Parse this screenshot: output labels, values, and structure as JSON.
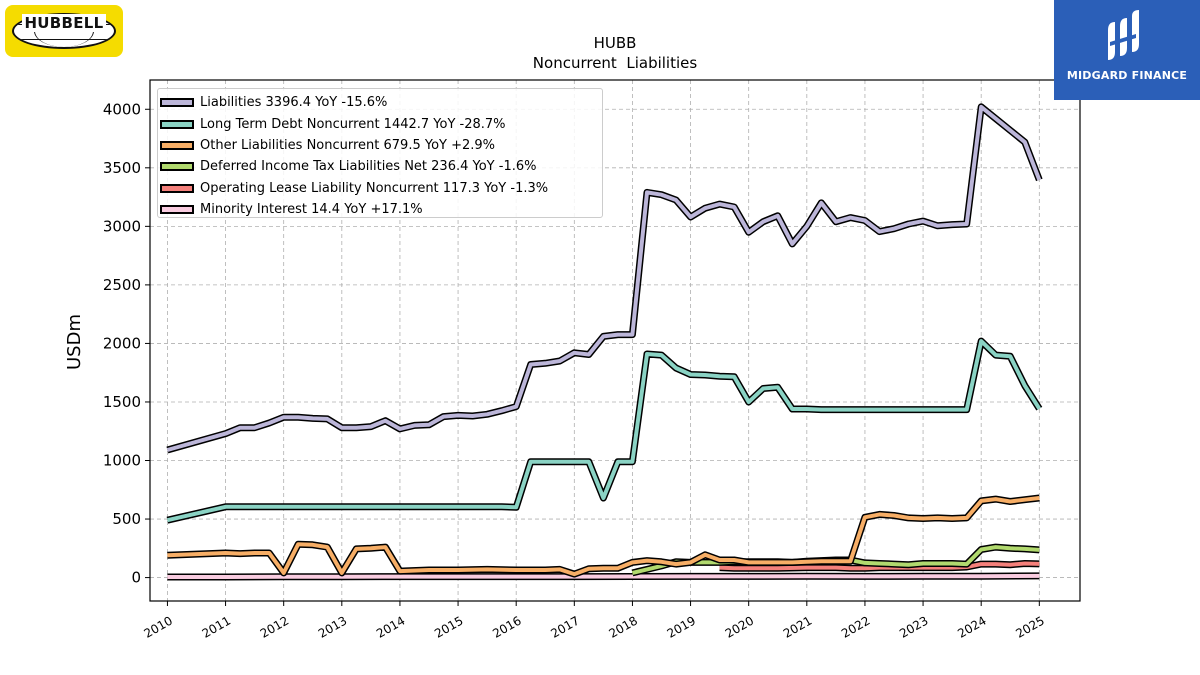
{
  "logos": {
    "left_text": "HUBBELL",
    "right_text": "MIDGARD FINANCE"
  },
  "chart_data": {
    "type": "line",
    "title": "HUBB",
    "subtitle": "Noncurrent  Liabilities",
    "xlabel": "",
    "ylabel": "USDm",
    "xlim": [
      2009.7,
      2025.7
    ],
    "ylim": [
      -200,
      4250
    ],
    "xticks": [
      2010,
      2011,
      2012,
      2013,
      2014,
      2015,
      2016,
      2017,
      2018,
      2019,
      2020,
      2021,
      2022,
      2023,
      2024,
      2025
    ],
    "xtick_labels": [
      "2010",
      "2011",
      "2012",
      "2013",
      "2014",
      "2015",
      "2016",
      "2017",
      "2018",
      "2019",
      "2020",
      "2021",
      "2022",
      "2023",
      "2024",
      "2025"
    ],
    "yticks": [
      0,
      500,
      1000,
      1500,
      2000,
      2500,
      3000,
      3500,
      4000
    ],
    "ytick_labels": [
      "0",
      "500",
      "1000",
      "1500",
      "2000",
      "2500",
      "3000",
      "3500",
      "4000"
    ],
    "grid": true,
    "legend_position": "top-left",
    "series": [
      {
        "name": "Liabilities",
        "legend_label": "Liabilities  3396.4 YoY -15.6%",
        "color": "#bcb6d9",
        "points": [
          [
            2010.0,
            1090
          ],
          [
            2011.0,
            1230
          ],
          [
            2011.25,
            1280
          ],
          [
            2011.5,
            1280
          ],
          [
            2011.75,
            1320
          ],
          [
            2012.0,
            1370
          ],
          [
            2012.25,
            1370
          ],
          [
            2012.5,
            1360
          ],
          [
            2012.75,
            1355
          ],
          [
            2013.0,
            1280
          ],
          [
            2013.25,
            1280
          ],
          [
            2013.5,
            1290
          ],
          [
            2013.75,
            1340
          ],
          [
            2014.0,
            1270
          ],
          [
            2014.25,
            1300
          ],
          [
            2014.5,
            1305
          ],
          [
            2014.75,
            1375
          ],
          [
            2015.0,
            1385
          ],
          [
            2015.25,
            1380
          ],
          [
            2015.5,
            1395
          ],
          [
            2015.75,
            1425
          ],
          [
            2016.0,
            1460
          ],
          [
            2016.25,
            1820
          ],
          [
            2016.5,
            1830
          ],
          [
            2016.75,
            1850
          ],
          [
            2017.0,
            1920
          ],
          [
            2017.25,
            1905
          ],
          [
            2017.5,
            2060
          ],
          [
            2017.75,
            2075
          ],
          [
            2018.0,
            2075
          ],
          [
            2018.25,
            3290
          ],
          [
            2018.5,
            3270
          ],
          [
            2018.75,
            3225
          ],
          [
            2019.0,
            3080
          ],
          [
            2019.25,
            3155
          ],
          [
            2019.5,
            3190
          ],
          [
            2019.75,
            3165
          ],
          [
            2020.0,
            2950
          ],
          [
            2020.25,
            3040
          ],
          [
            2020.5,
            3090
          ],
          [
            2020.75,
            2850
          ],
          [
            2021.0,
            3000
          ],
          [
            2021.25,
            3200
          ],
          [
            2021.5,
            3040
          ],
          [
            2021.75,
            3075
          ],
          [
            2022.0,
            3050
          ],
          [
            2022.25,
            2955
          ],
          [
            2022.5,
            2980
          ],
          [
            2022.75,
            3020
          ],
          [
            2023.0,
            3045
          ],
          [
            2023.25,
            3005
          ],
          [
            2023.5,
            3015
          ],
          [
            2023.75,
            3020
          ],
          [
            2024.0,
            4020
          ],
          [
            2024.25,
            3920
          ],
          [
            2024.5,
            3820
          ],
          [
            2024.75,
            3720
          ],
          [
            2025.0,
            3396.4
          ]
        ]
      },
      {
        "name": "Long Term Debt Noncurrent",
        "legend_label": "Long Term Debt Noncurrent  1442.7 YoY -28.7%",
        "color": "#8ad3c4",
        "points": [
          [
            2010.0,
            490
          ],
          [
            2011.0,
            605
          ],
          [
            2011.5,
            605
          ],
          [
            2012.0,
            605
          ],
          [
            2013.0,
            605
          ],
          [
            2014.0,
            605
          ],
          [
            2015.0,
            605
          ],
          [
            2015.5,
            605
          ],
          [
            2015.75,
            605
          ],
          [
            2016.0,
            600
          ],
          [
            2016.25,
            990
          ],
          [
            2016.5,
            990
          ],
          [
            2016.75,
            990
          ],
          [
            2017.0,
            990
          ],
          [
            2017.25,
            990
          ],
          [
            2017.5,
            680
          ],
          [
            2017.75,
            990
          ],
          [
            2018.0,
            990
          ],
          [
            2018.25,
            1910
          ],
          [
            2018.5,
            1900
          ],
          [
            2018.75,
            1790
          ],
          [
            2019.0,
            1735
          ],
          [
            2019.25,
            1730
          ],
          [
            2019.5,
            1720
          ],
          [
            2019.75,
            1715
          ],
          [
            2020.0,
            1500
          ],
          [
            2020.25,
            1615
          ],
          [
            2020.5,
            1625
          ],
          [
            2020.75,
            1440
          ],
          [
            2021.0,
            1440
          ],
          [
            2021.25,
            1435
          ],
          [
            2021.5,
            1435
          ],
          [
            2022.0,
            1435
          ],
          [
            2022.5,
            1435
          ],
          [
            2023.0,
            1435
          ],
          [
            2023.5,
            1435
          ],
          [
            2023.75,
            1435
          ],
          [
            2024.0,
            2020
          ],
          [
            2024.25,
            1900
          ],
          [
            2024.5,
            1890
          ],
          [
            2024.75,
            1640
          ],
          [
            2025.0,
            1442.7
          ]
        ]
      },
      {
        "name": "Other Liabilities Noncurrent",
        "legend_label": "Other Liabilities Noncurrent  679.5 YoY +2.9%",
        "color": "#f7ae66",
        "points": [
          [
            2010.0,
            190
          ],
          [
            2011.0,
            210
          ],
          [
            2011.25,
            205
          ],
          [
            2011.5,
            210
          ],
          [
            2011.75,
            210
          ],
          [
            2012.0,
            40
          ],
          [
            2012.25,
            285
          ],
          [
            2012.5,
            280
          ],
          [
            2012.75,
            260
          ],
          [
            2013.0,
            40
          ],
          [
            2013.25,
            245
          ],
          [
            2013.5,
            250
          ],
          [
            2013.75,
            260
          ],
          [
            2014.0,
            55
          ],
          [
            2014.5,
            65
          ],
          [
            2015.0,
            65
          ],
          [
            2015.5,
            70
          ],
          [
            2016.0,
            65
          ],
          [
            2016.5,
            65
          ],
          [
            2016.75,
            70
          ],
          [
            2017.0,
            30
          ],
          [
            2017.25,
            75
          ],
          [
            2017.5,
            80
          ],
          [
            2017.75,
            80
          ],
          [
            2018.0,
            130
          ],
          [
            2018.25,
            145
          ],
          [
            2018.5,
            135
          ],
          [
            2018.75,
            115
          ],
          [
            2019.0,
            130
          ],
          [
            2019.25,
            195
          ],
          [
            2019.5,
            150
          ],
          [
            2019.75,
            150
          ],
          [
            2020.0,
            130
          ],
          [
            2020.5,
            130
          ],
          [
            2020.75,
            130
          ],
          [
            2021.0,
            135
          ],
          [
            2021.25,
            140
          ],
          [
            2021.5,
            140
          ],
          [
            2021.75,
            140
          ],
          [
            2022.0,
            515
          ],
          [
            2022.25,
            540
          ],
          [
            2022.5,
            530
          ],
          [
            2022.75,
            510
          ],
          [
            2023.0,
            505
          ],
          [
            2023.25,
            510
          ],
          [
            2023.5,
            505
          ],
          [
            2023.75,
            510
          ],
          [
            2024.0,
            655
          ],
          [
            2024.25,
            670
          ],
          [
            2024.5,
            650
          ],
          [
            2024.75,
            665
          ],
          [
            2025.0,
            679.5
          ]
        ]
      },
      {
        "name": "Deferred Income Tax Liabilities Net",
        "legend_label": "Deferred Income Tax Liabilities Net  236.4 YoY -1.6%",
        "color": "#b1d96e",
        "points": [
          [
            2018.0,
            40
          ],
          [
            2018.25,
            70
          ],
          [
            2018.5,
            100
          ],
          [
            2018.75,
            135
          ],
          [
            2019.0,
            130
          ],
          [
            2019.25,
            130
          ],
          [
            2019.5,
            130
          ],
          [
            2019.75,
            135
          ],
          [
            2020.0,
            135
          ],
          [
            2020.5,
            135
          ],
          [
            2020.75,
            130
          ],
          [
            2021.0,
            140
          ],
          [
            2021.25,
            145
          ],
          [
            2021.5,
            150
          ],
          [
            2021.75,
            150
          ],
          [
            2022.0,
            125
          ],
          [
            2022.25,
            120
          ],
          [
            2022.5,
            115
          ],
          [
            2022.75,
            110
          ],
          [
            2023.0,
            120
          ],
          [
            2023.25,
            120
          ],
          [
            2023.5,
            120
          ],
          [
            2023.75,
            115
          ],
          [
            2024.0,
            240
          ],
          [
            2024.25,
            260
          ],
          [
            2024.5,
            250
          ],
          [
            2024.75,
            245
          ],
          [
            2025.0,
            236.4
          ]
        ]
      },
      {
        "name": "Operating Lease Liability Noncurrent",
        "legend_label": "Operating Lease Liability Noncurrent  117.3 YoY -1.3%",
        "color": "#f4807b",
        "points": [
          [
            2019.5,
            85
          ],
          [
            2019.75,
            80
          ],
          [
            2020.0,
            80
          ],
          [
            2020.5,
            80
          ],
          [
            2021.0,
            85
          ],
          [
            2021.5,
            85
          ],
          [
            2021.75,
            80
          ],
          [
            2022.0,
            80
          ],
          [
            2022.25,
            85
          ],
          [
            2022.5,
            85
          ],
          [
            2022.75,
            85
          ],
          [
            2023.0,
            85
          ],
          [
            2023.5,
            85
          ],
          [
            2023.75,
            90
          ],
          [
            2024.0,
            115
          ],
          [
            2024.25,
            115
          ],
          [
            2024.5,
            110
          ],
          [
            2024.75,
            120
          ],
          [
            2025.0,
            117.3
          ]
        ]
      },
      {
        "name": "Minority Interest",
        "legend_label": "Minority Interest  14.4 YoY +17.1%",
        "color": "#f9cce0",
        "points": [
          [
            2010.0,
            5
          ],
          [
            2011.0,
            5
          ],
          [
            2012.0,
            7
          ],
          [
            2013.0,
            7
          ],
          [
            2014.0,
            8
          ],
          [
            2015.0,
            8
          ],
          [
            2016.0,
            8
          ],
          [
            2017.0,
            8
          ],
          [
            2018.0,
            9
          ],
          [
            2019.0,
            10
          ],
          [
            2020.0,
            10
          ],
          [
            2021.0,
            11
          ],
          [
            2022.0,
            10
          ],
          [
            2023.0,
            11
          ],
          [
            2024.0,
            12
          ],
          [
            2025.0,
            14.4
          ]
        ]
      }
    ]
  }
}
